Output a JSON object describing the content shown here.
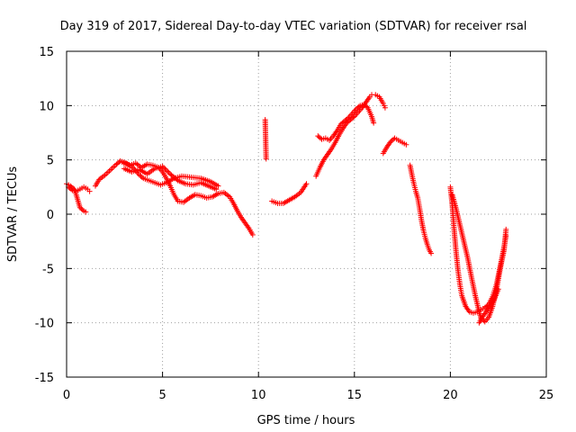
{
  "chart_data": {
    "type": "scatter",
    "title": "Day 319 of 2017, Sidereal Day-to-day VTEC variation (SDTVAR) for receiver rsal",
    "xlabel": "GPS time / hours",
    "ylabel": "SDTVAR / TECUs",
    "xlim": [
      0,
      25
    ],
    "ylim": [
      -15,
      15
    ],
    "xticks": [
      0,
      5,
      10,
      15,
      20,
      25
    ],
    "yticks": [
      -15,
      -10,
      -5,
      0,
      5,
      10,
      15
    ],
    "xtick_labels": [
      "0",
      "5",
      "10",
      "15",
      "20",
      "25"
    ],
    "ytick_labels": [
      "-15",
      "-10",
      "-5",
      "0",
      "5",
      "10",
      "15"
    ],
    "grid": true,
    "marker": "plus",
    "color": "#ff0000",
    "tracks": [
      [
        [
          0.0,
          2.8
        ],
        [
          0.2,
          2.6
        ],
        [
          0.4,
          2.3
        ],
        [
          0.5,
          1.8
        ],
        [
          0.6,
          1.2
        ],
        [
          0.7,
          0.6
        ],
        [
          0.9,
          0.3
        ],
        [
          1.0,
          0.2
        ]
      ],
      [
        [
          0.1,
          2.5
        ],
        [
          0.3,
          2.2
        ],
        [
          0.5,
          2.1
        ],
        [
          0.7,
          2.3
        ],
        [
          0.9,
          2.5
        ],
        [
          1.1,
          2.3
        ],
        [
          1.2,
          2.1
        ]
      ],
      [
        [
          1.5,
          2.6
        ],
        [
          1.7,
          3.2
        ],
        [
          2.0,
          3.6
        ],
        [
          2.3,
          4.1
        ],
        [
          2.6,
          4.6
        ],
        [
          2.8,
          4.9
        ],
        [
          3.1,
          4.7
        ],
        [
          3.4,
          4.4
        ],
        [
          3.6,
          4.0
        ],
        [
          3.8,
          3.6
        ],
        [
          4.0,
          3.3
        ],
        [
          4.3,
          3.1
        ],
        [
          4.6,
          2.9
        ],
        [
          4.9,
          2.7
        ],
        [
          5.2,
          2.9
        ],
        [
          5.6,
          3.3
        ],
        [
          6.0,
          3.5
        ],
        [
          6.5,
          3.4
        ],
        [
          7.0,
          3.3
        ],
        [
          7.5,
          3.0
        ],
        [
          7.9,
          2.6
        ]
      ],
      [
        [
          2.9,
          4.8
        ],
        [
          3.3,
          4.5
        ],
        [
          3.6,
          4.7
        ],
        [
          3.9,
          4.3
        ],
        [
          4.2,
          4.6
        ],
        [
          4.5,
          4.5
        ],
        [
          4.8,
          4.3
        ],
        [
          5.0,
          3.9
        ],
        [
          5.2,
          3.3
        ],
        [
          5.4,
          2.6
        ],
        [
          5.6,
          1.8
        ],
        [
          5.8,
          1.2
        ],
        [
          6.1,
          1.1
        ],
        [
          6.4,
          1.5
        ],
        [
          6.7,
          1.8
        ],
        [
          7.0,
          1.7
        ],
        [
          7.3,
          1.5
        ],
        [
          7.6,
          1.6
        ],
        [
          7.9,
          1.9
        ],
        [
          8.2,
          2.0
        ],
        [
          8.5,
          1.6
        ],
        [
          8.7,
          1.0
        ],
        [
          8.9,
          0.3
        ],
        [
          9.1,
          -0.3
        ],
        [
          9.3,
          -0.8
        ],
        [
          9.5,
          -1.3
        ],
        [
          9.7,
          -1.9
        ]
      ],
      [
        [
          3.0,
          4.2
        ],
        [
          3.4,
          3.9
        ],
        [
          3.8,
          4.1
        ],
        [
          4.2,
          3.7
        ],
        [
          4.6,
          4.2
        ],
        [
          5.0,
          4.4
        ],
        [
          5.4,
          3.7
        ],
        [
          5.8,
          3.1
        ],
        [
          6.2,
          2.8
        ],
        [
          6.6,
          2.7
        ],
        [
          7.0,
          2.9
        ],
        [
          7.4,
          2.6
        ],
        [
          7.8,
          2.3
        ]
      ],
      [
        [
          10.35,
          8.7
        ],
        [
          10.4,
          5.1
        ]
      ],
      [
        [
          10.7,
          1.2
        ],
        [
          11.0,
          1.0
        ],
        [
          11.3,
          1.0
        ],
        [
          11.6,
          1.3
        ],
        [
          11.9,
          1.6
        ],
        [
          12.2,
          2.0
        ],
        [
          12.5,
          2.8
        ]
      ],
      [
        [
          13.0,
          3.5
        ],
        [
          13.2,
          4.3
        ],
        [
          13.4,
          5.0
        ],
        [
          13.6,
          5.5
        ],
        [
          13.8,
          6.0
        ],
        [
          14.0,
          6.6
        ],
        [
          14.2,
          7.3
        ],
        [
          14.4,
          7.9
        ],
        [
          14.6,
          8.4
        ],
        [
          14.8,
          8.7
        ],
        [
          15.0,
          9.0
        ],
        [
          15.2,
          9.4
        ],
        [
          15.4,
          9.8
        ],
        [
          15.6,
          10.3
        ],
        [
          15.8,
          10.8
        ],
        [
          15.9,
          11.0
        ]
      ],
      [
        [
          13.1,
          7.2
        ],
        [
          13.3,
          6.9
        ],
        [
          13.5,
          7.0
        ],
        [
          13.7,
          6.8
        ],
        [
          13.9,
          7.2
        ],
        [
          14.1,
          7.7
        ],
        [
          14.3,
          8.3
        ],
        [
          14.5,
          8.6
        ],
        [
          14.7,
          8.9
        ],
        [
          14.9,
          9.3
        ],
        [
          15.1,
          9.7
        ],
        [
          15.3,
          10.0
        ],
        [
          15.5,
          10.1
        ],
        [
          15.7,
          9.8
        ],
        [
          15.9,
          9.0
        ],
        [
          16.0,
          8.4
        ]
      ],
      [
        [
          16.1,
          11.0
        ],
        [
          16.3,
          10.8
        ],
        [
          16.5,
          10.2
        ],
        [
          16.6,
          9.8
        ]
      ],
      [
        [
          16.5,
          5.6
        ],
        [
          16.7,
          6.2
        ],
        [
          16.9,
          6.7
        ],
        [
          17.1,
          7.0
        ],
        [
          17.3,
          6.8
        ],
        [
          17.5,
          6.6
        ],
        [
          17.7,
          6.4
        ]
      ],
      [
        [
          17.9,
          4.5
        ],
        [
          18.0,
          3.6
        ],
        [
          18.1,
          2.8
        ],
        [
          18.2,
          2.1
        ],
        [
          18.3,
          1.5
        ],
        [
          18.4,
          0.5
        ],
        [
          18.5,
          -0.6
        ],
        [
          18.6,
          -1.5
        ],
        [
          18.7,
          -2.2
        ],
        [
          18.8,
          -2.8
        ],
        [
          18.9,
          -3.3
        ],
        [
          19.0,
          -3.6
        ]
      ],
      [
        [
          20.0,
          2.5
        ],
        [
          20.1,
          0.8
        ],
        [
          20.2,
          -1.5
        ],
        [
          20.3,
          -3.5
        ],
        [
          20.4,
          -5.2
        ],
        [
          20.5,
          -6.5
        ],
        [
          20.6,
          -7.5
        ],
        [
          20.8,
          -8.5
        ],
        [
          21.0,
          -9.0
        ],
        [
          21.2,
          -9.1
        ],
        [
          21.4,
          -9.0
        ],
        [
          21.6,
          -8.8
        ],
        [
          21.8,
          -8.6
        ],
        [
          22.0,
          -8.3
        ],
        [
          22.2,
          -7.6
        ],
        [
          22.4,
          -6.5
        ],
        [
          22.6,
          -4.8
        ],
        [
          22.8,
          -3.0
        ],
        [
          22.9,
          -2.0
        ]
      ],
      [
        [
          20.1,
          1.8
        ],
        [
          20.3,
          0.5
        ],
        [
          20.5,
          -1.0
        ],
        [
          20.7,
          -2.5
        ],
        [
          20.9,
          -4.0
        ],
        [
          21.1,
          -5.8
        ],
        [
          21.3,
          -7.5
        ],
        [
          21.5,
          -9.0
        ],
        [
          21.6,
          -9.6
        ],
        [
          21.8,
          -9.9
        ],
        [
          22.0,
          -9.5
        ],
        [
          22.2,
          -8.5
        ],
        [
          22.4,
          -7.0
        ],
        [
          22.6,
          -5.0
        ],
        [
          22.8,
          -3.3
        ],
        [
          22.9,
          -1.4
        ]
      ],
      [
        [
          21.5,
          -10.0
        ],
        [
          21.7,
          -9.4
        ],
        [
          21.9,
          -8.9
        ],
        [
          22.1,
          -8.4
        ],
        [
          22.3,
          -7.8
        ],
        [
          22.5,
          -6.9
        ]
      ]
    ]
  }
}
